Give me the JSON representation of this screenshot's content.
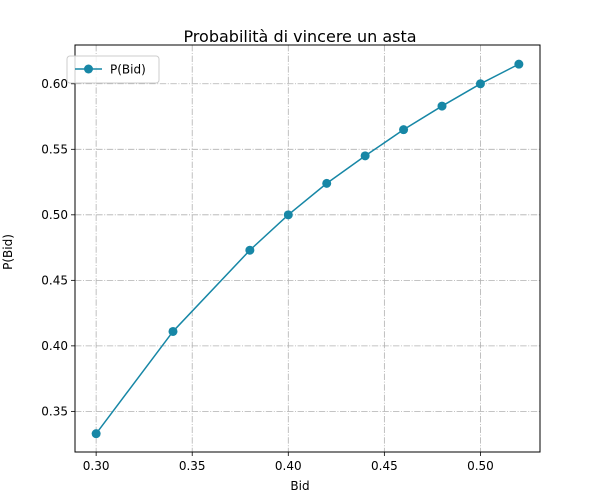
{
  "chart_data": {
    "type": "line",
    "title": "Probabilità di vincere un asta",
    "xlabel": "Bid",
    "ylabel": "P(Bid)",
    "xlim": [
      0.289,
      0.531
    ],
    "ylim": [
      0.319,
      0.6296
    ],
    "xticks": [
      0.3,
      0.35,
      0.4,
      0.45,
      0.5
    ],
    "xtick_labels": [
      "0.30",
      "0.35",
      "0.40",
      "0.45",
      "0.50"
    ],
    "yticks": [
      0.35,
      0.4,
      0.45,
      0.5,
      0.55,
      0.6
    ],
    "ytick_labels": [
      "0.35",
      "0.40",
      "0.45",
      "0.50",
      "0.55",
      "0.60"
    ],
    "grid": true,
    "grid_style": "dashdot",
    "legend_position": "top-left",
    "series": [
      {
        "name": "P(Bid)",
        "color": "#1787a6",
        "marker": "circle",
        "x": [
          0.3,
          0.34,
          0.38,
          0.4,
          0.42,
          0.44,
          0.46,
          0.48,
          0.5,
          0.52
        ],
        "y": [
          0.333,
          0.411,
          0.473,
          0.5,
          0.524,
          0.545,
          0.565,
          0.583,
          0.6,
          0.615
        ]
      }
    ]
  }
}
